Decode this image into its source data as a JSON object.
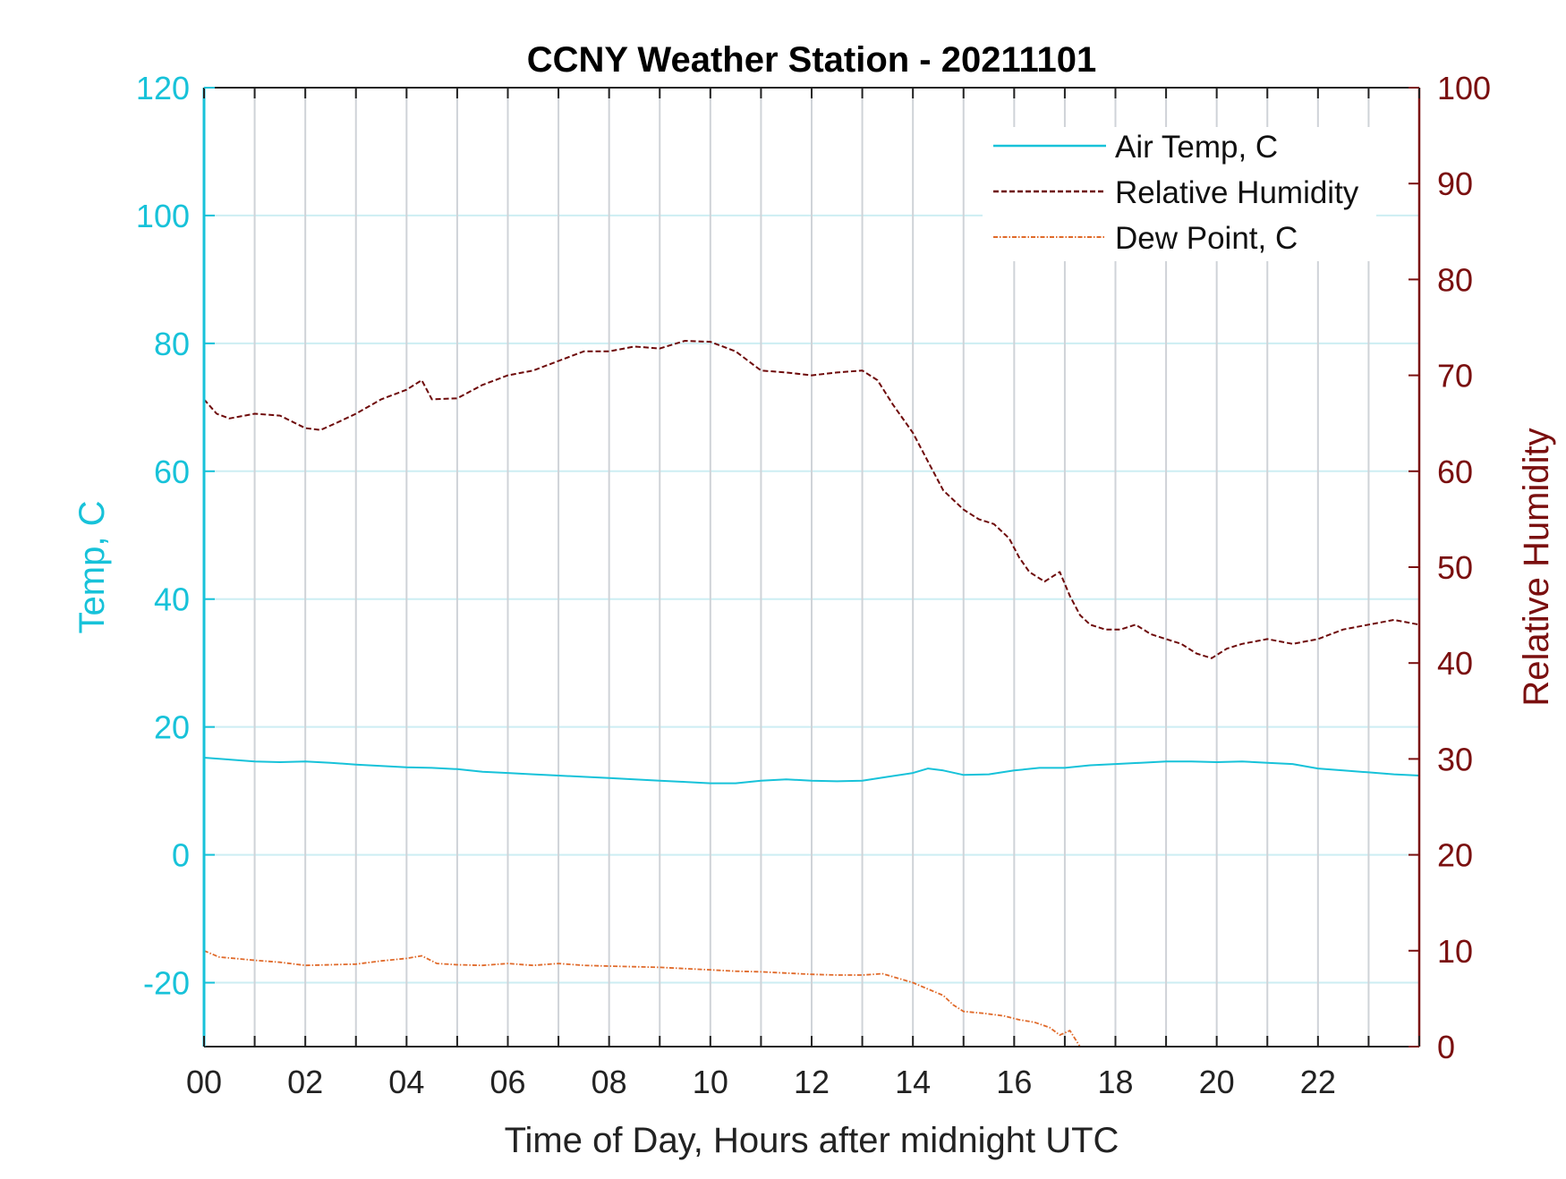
{
  "chart_data": {
    "type": "line",
    "title": "CCNY Weather Station - 20211101",
    "xlabel": "Time of Day, Hours after midnight UTC",
    "ylabel_left": "Temp, C",
    "ylabel_right": "Relative Humidity",
    "xlim": [
      0,
      24
    ],
    "ylim_left": [
      -30,
      120
    ],
    "ylim_right": [
      0,
      100
    ],
    "x_ticks": [
      0,
      2,
      4,
      6,
      8,
      10,
      12,
      14,
      16,
      18,
      20,
      22
    ],
    "x_tick_labels": [
      "00",
      "02",
      "04",
      "06",
      "08",
      "10",
      "12",
      "14",
      "16",
      "18",
      "20",
      "22"
    ],
    "y_left_ticks": [
      -20,
      0,
      20,
      40,
      60,
      80,
      100,
      120
    ],
    "y_left_tick_labels": [
      "-20",
      "0",
      "20",
      "40",
      "60",
      "80",
      "100",
      "120"
    ],
    "y_right_ticks": [
      0,
      10,
      20,
      30,
      40,
      50,
      60,
      70,
      80,
      90,
      100
    ],
    "y_right_tick_labels": [
      "0",
      "10",
      "20",
      "30",
      "40",
      "50",
      "60",
      "70",
      "80",
      "90",
      "100"
    ],
    "grid": true,
    "legend_position": "top-right",
    "colors": {
      "left_axis": "#17c2d9",
      "right_axis": "#7a0f0f",
      "temp": "#17c2d9",
      "rh": "#6e0a0a",
      "dew": "#e06a2a",
      "vgrid": "#cfd3d8",
      "hgrid": "#cdeef3"
    },
    "series": [
      {
        "name": "Air Temp, C",
        "axis": "left",
        "style": "solid",
        "x": [
          0,
          0.5,
          1,
          1.5,
          2,
          2.5,
          3,
          3.5,
          4,
          4.5,
          5,
          5.5,
          6,
          6.5,
          7,
          7.5,
          8,
          8.5,
          9,
          9.5,
          10,
          10.5,
          11,
          11.5,
          12,
          12.5,
          13,
          13.5,
          14,
          14.3,
          14.6,
          15,
          15.5,
          16,
          16.5,
          17,
          17.5,
          18,
          18.5,
          19,
          19.5,
          20,
          20.5,
          21,
          21.5,
          22,
          22.5,
          23,
          23.5,
          24
        ],
        "y": [
          15.2,
          14.9,
          14.6,
          14.5,
          14.6,
          14.4,
          14.1,
          13.9,
          13.7,
          13.6,
          13.4,
          13.0,
          12.8,
          12.6,
          12.4,
          12.2,
          12.0,
          11.8,
          11.6,
          11.4,
          11.2,
          11.2,
          11.6,
          11.8,
          11.6,
          11.5,
          11.6,
          12.2,
          12.8,
          13.5,
          13.2,
          12.5,
          12.6,
          13.2,
          13.6,
          13.6,
          14.0,
          14.2,
          14.4,
          14.6,
          14.6,
          14.5,
          14.6,
          14.4,
          14.2,
          13.5,
          13.2,
          12.9,
          12.6,
          12.4
        ]
      },
      {
        "name": "Relative Humidity",
        "axis": "right",
        "style": "dashed",
        "x": [
          0,
          0.25,
          0.5,
          1,
          1.5,
          2,
          2.3,
          2.6,
          3,
          3.5,
          4,
          4.3,
          4.5,
          5,
          5.5,
          6,
          6.5,
          7,
          7.5,
          8,
          8.5,
          9,
          9.5,
          10,
          10.5,
          11,
          11.5,
          12,
          12.5,
          13,
          13.3,
          13.6,
          14,
          14.3,
          14.6,
          15,
          15.3,
          15.6,
          15.9,
          16.1,
          16.3,
          16.6,
          16.9,
          17.1,
          17.3,
          17.5,
          17.8,
          18.1,
          18.4,
          18.7,
          19,
          19.3,
          19.6,
          19.9,
          20.2,
          20.5,
          21,
          21.5,
          22,
          22.5,
          23,
          23.5,
          24
        ],
        "y": [
          67.5,
          66.0,
          65.5,
          66.0,
          65.8,
          64.5,
          64.3,
          65.0,
          66.0,
          67.5,
          68.5,
          69.5,
          67.5,
          67.6,
          69.0,
          70.0,
          70.5,
          71.5,
          72.5,
          72.5,
          73.0,
          72.8,
          73.6,
          73.5,
          72.5,
          70.5,
          70.3,
          70.0,
          70.3,
          70.5,
          69.5,
          67.0,
          64.0,
          61.0,
          58.0,
          56.0,
          55.0,
          54.5,
          53.0,
          51.0,
          49.5,
          48.5,
          49.5,
          47.0,
          45.0,
          44.0,
          43.5,
          43.5,
          44.0,
          43.0,
          42.5,
          42.0,
          41.0,
          40.5,
          41.5,
          42.0,
          42.5,
          42.0,
          42.5,
          43.5,
          44.0,
          44.5,
          44.0
        ]
      },
      {
        "name": "Dew Point, C",
        "axis": "left",
        "style": "dashdot",
        "x": [
          0,
          0.3,
          0.6,
          1,
          1.5,
          2,
          2.5,
          3,
          3.5,
          4,
          4.3,
          4.6,
          5,
          5.5,
          6,
          6.5,
          7,
          7.5,
          8,
          8.5,
          9,
          9.5,
          10,
          10.5,
          11,
          11.5,
          12,
          12.5,
          13,
          13.4,
          13.7,
          14,
          14.3,
          14.6,
          14.8,
          15,
          15.4,
          15.8,
          16.1,
          16.4,
          16.7,
          16.9,
          17.1,
          17.3
        ],
        "y": [
          -15.0,
          -16.0,
          -16.2,
          -16.5,
          -16.8,
          -17.3,
          -17.2,
          -17.1,
          -16.6,
          -16.2,
          -15.8,
          -17.0,
          -17.2,
          -17.3,
          -17.0,
          -17.3,
          -17.0,
          -17.3,
          -17.4,
          -17.5,
          -17.6,
          -17.8,
          -18.0,
          -18.2,
          -18.3,
          -18.5,
          -18.7,
          -18.8,
          -18.8,
          -18.6,
          -19.3,
          -20.0,
          -21.0,
          -22.0,
          -23.5,
          -24.5,
          -24.8,
          -25.2,
          -25.8,
          -26.2,
          -27.0,
          -28.2,
          -27.5,
          -30.0
        ]
      }
    ]
  }
}
